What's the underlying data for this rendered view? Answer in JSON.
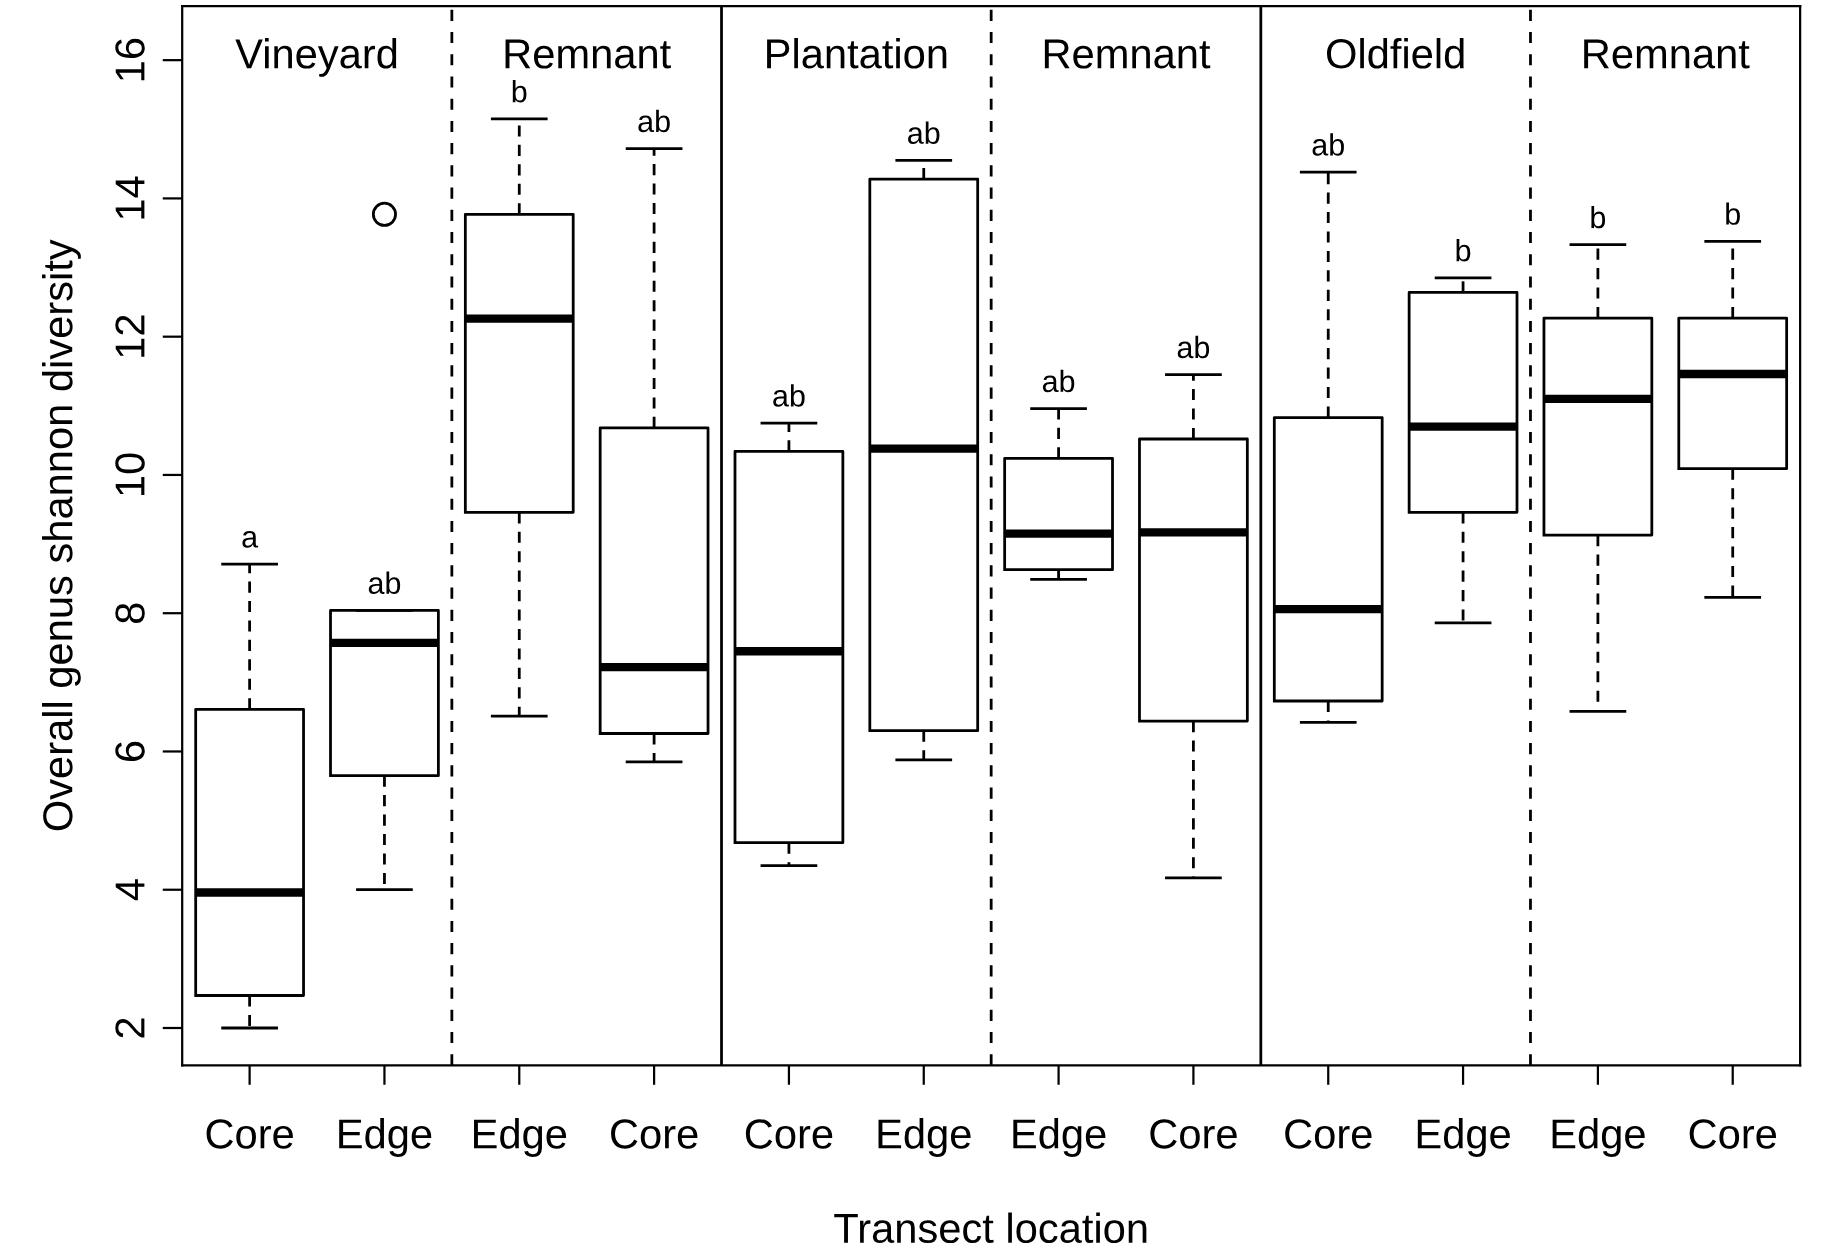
{
  "chart_data": {
    "type": "box",
    "xlabel": "Transect location",
    "ylabel": "Overall genus shannon diversity",
    "categories": [
      "Core",
      "Edge",
      "Edge",
      "Core",
      "Core",
      "Edge",
      "Edge",
      "Core",
      "Core",
      "Edge",
      "Edge",
      "Core"
    ],
    "boxes": [
      {
        "low": 2.0,
        "q1": 2.47,
        "median": 3.96,
        "q3": 6.61,
        "high": 8.71
      },
      {
        "low": 4.0,
        "q1": 5.65,
        "median": 7.57,
        "q3": 8.04,
        "high": 8.04,
        "outliers": [
          13.77
        ]
      },
      {
        "low": 6.51,
        "q1": 9.46,
        "median": 12.26,
        "q3": 13.77,
        "high": 15.15
      },
      {
        "low": 5.85,
        "q1": 6.26,
        "median": 7.22,
        "q3": 10.68,
        "high": 14.72
      },
      {
        "low": 4.35,
        "q1": 4.68,
        "median": 7.45,
        "q3": 10.34,
        "high": 10.75
      },
      {
        "low": 5.88,
        "q1": 6.3,
        "median": 10.38,
        "q3": 14.28,
        "high": 14.55
      },
      {
        "low": 8.49,
        "q1": 8.63,
        "median": 9.15,
        "q3": 10.24,
        "high": 10.96
      },
      {
        "low": 4.17,
        "q1": 6.44,
        "median": 9.17,
        "q3": 10.52,
        "high": 11.45
      },
      {
        "low": 6.42,
        "q1": 6.73,
        "median": 8.06,
        "q3": 10.83,
        "high": 14.38
      },
      {
        "low": 7.86,
        "q1": 9.46,
        "median": 10.7,
        "q3": 12.64,
        "high": 12.85
      },
      {
        "low": 6.58,
        "q1": 9.13,
        "median": 11.1,
        "q3": 12.27,
        "high": 13.33
      },
      {
        "low": 8.23,
        "q1": 10.09,
        "median": 11.46,
        "q3": 12.27,
        "high": 13.38
      }
    ],
    "ylim": [
      1.46,
      16.78
    ],
    "yticks": [
      2,
      4,
      6,
      8,
      10,
      12,
      14,
      16
    ],
    "grid": false,
    "annotations": [
      "Vineyard",
      "Remnant",
      "Plantation",
      "Remnant",
      "Oldfield",
      "Remnant",
      "a",
      "ab",
      "b",
      "ab",
      "ab",
      "ab",
      "ab",
      "ab",
      "ab",
      "b",
      "b",
      "b"
    ]
  }
}
